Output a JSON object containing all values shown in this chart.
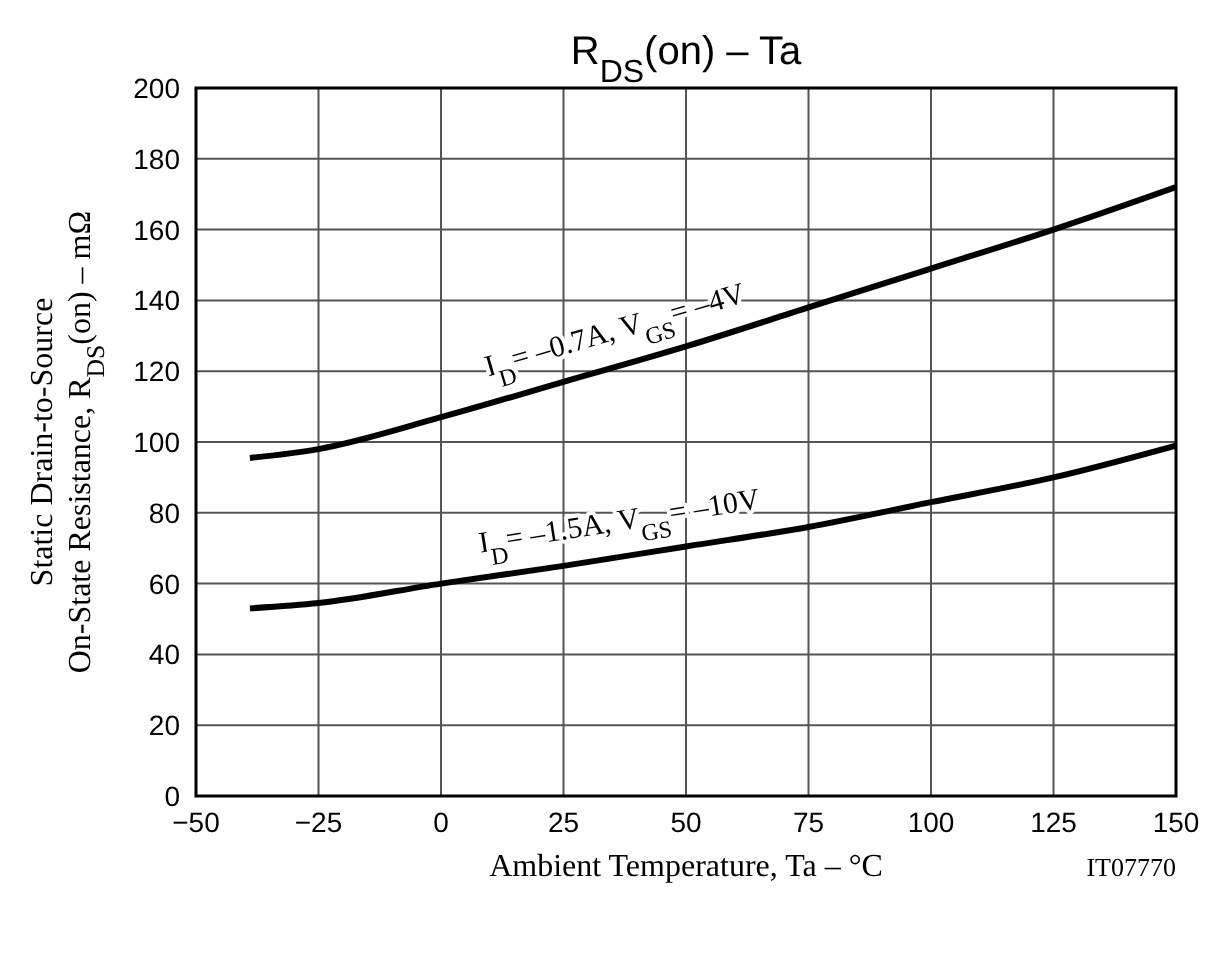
{
  "chart_data": {
    "type": "line",
    "title": "R$_{DS}$(on) – Ta",
    "xlabel": "Ambient Temperature, Ta  –  °C",
    "ylabel": "Static Drain-to-Source\nOn-State Resistance, R$_{DS}$(on)  –  mΩ",
    "annotations": [
      "IT07770"
    ],
    "x": [
      -39,
      -25,
      0,
      25,
      50,
      75,
      100,
      125,
      150
    ],
    "series": [
      {
        "name": "I$_{D}$= –0.7A, V$_{GS}$= –4V",
        "color": "#000000",
        "values": [
          95.5,
          98,
          107,
          117,
          127,
          138,
          149,
          160,
          172
        ]
      },
      {
        "name": "I$_{D}$= –1.5A, V$_{GS}$= –10V",
        "color": "#000000",
        "values": [
          53,
          54.5,
          60,
          65,
          70.5,
          76,
          83,
          90,
          99
        ]
      }
    ],
    "xlim": [
      -50,
      150
    ],
    "xticks": [
      -50,
      -25,
      0,
      25,
      50,
      75,
      100,
      125,
      150
    ],
    "ylim": [
      0,
      200
    ],
    "yticks": [
      0,
      20,
      40,
      60,
      80,
      100,
      120,
      140,
      160,
      180,
      200
    ],
    "grid": true,
    "legend": false,
    "marker": "none",
    "line_style": "solid"
  }
}
